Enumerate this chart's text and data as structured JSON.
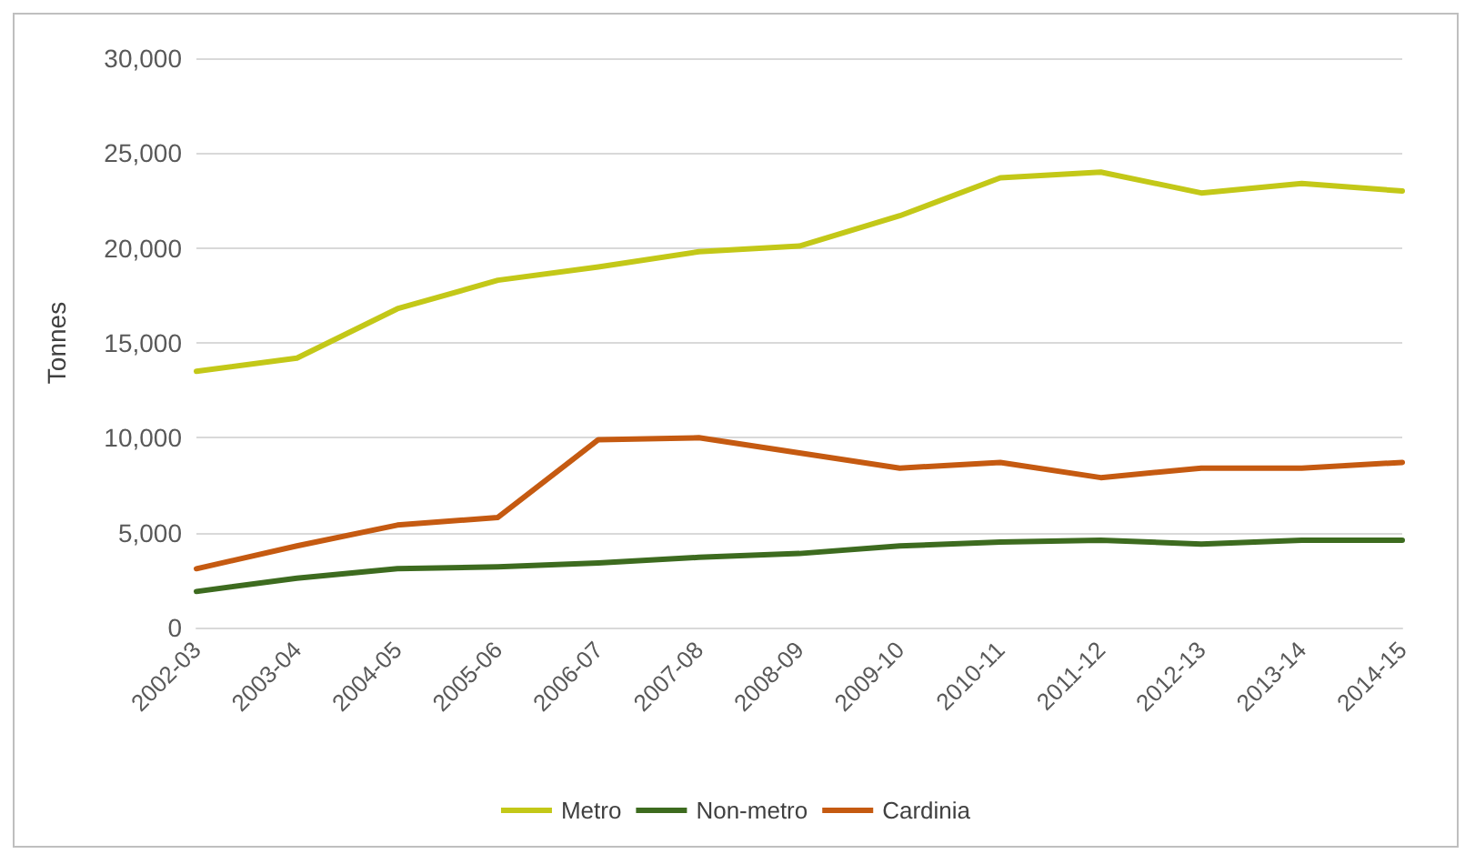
{
  "chart_data": {
    "type": "line",
    "ylabel": "Tonnes",
    "categories": [
      "2002-03",
      "2003-04",
      "2004-05",
      "2005-06",
      "2006-07",
      "2007-08",
      "2008-09",
      "2009-10",
      "2010-11",
      "2011-12",
      "2012-13",
      "2013-14",
      "2014-15"
    ],
    "series": [
      {
        "name": "Metro",
        "color": "#c3c818",
        "values": [
          13500,
          14200,
          16800,
          18300,
          19000,
          19800,
          20100,
          21700,
          23700,
          24000,
          22900,
          23400,
          23000
        ]
      },
      {
        "name": "Non-metro",
        "color": "#3d6b1f",
        "values": [
          1900,
          2600,
          3100,
          3200,
          3400,
          3700,
          3900,
          4300,
          4500,
          4600,
          4400,
          4600,
          4600
        ]
      },
      {
        "name": "Cardinia",
        "color": "#c55a11",
        "values": [
          3100,
          4300,
          5400,
          5800,
          9900,
          10000,
          9200,
          8400,
          8700,
          7900,
          8400,
          8400,
          8700
        ]
      }
    ],
    "ylim": [
      0,
      30000
    ],
    "yticks": [
      0,
      {
        "value": 5000,
        "label": "5,000"
      },
      {
        "value": 10000,
        "label": "10,000"
      },
      {
        "value": 15000,
        "label": "15,000"
      },
      {
        "value": 20000,
        "label": "20,000"
      },
      {
        "value": 25000,
        "label": "25,000"
      },
      {
        "value": 30000,
        "label": "30,000"
      }
    ],
    "grid": "y",
    "legend": "bottom",
    "marker": "none",
    "line_style": "solid"
  }
}
